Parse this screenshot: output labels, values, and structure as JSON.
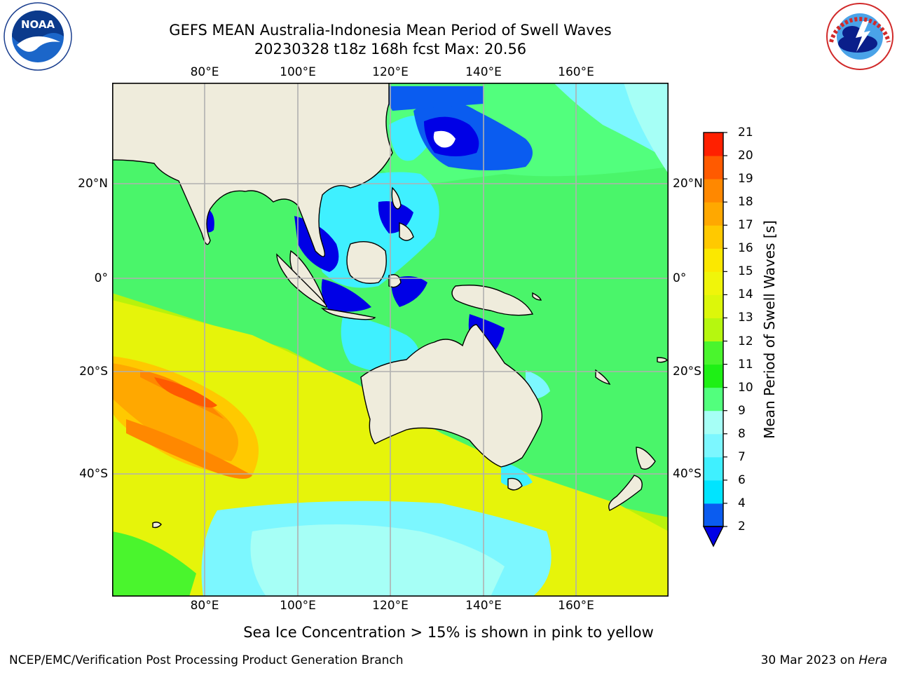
{
  "header": {
    "title_line1": "GEFS MEAN Australia-Indonesia Mean Period of Swell Waves",
    "title_line2": "20230328 t18z 168h fcst   Max: 20.56"
  },
  "logos": {
    "left": {
      "text": "NOAA",
      "ring_text": "NATIONAL OCEANIC AND ATMOSPHERIC ADMINISTRATION",
      "icon": "noaa-logo-icon"
    },
    "right": {
      "ring_text": "NATIONAL WEATHER SERVICE",
      "icon": "nws-logo-icon"
    }
  },
  "map": {
    "lon_ticks": [
      "80°E",
      "100°E",
      "120°E",
      "140°E",
      "160°E"
    ],
    "lat_ticks": [
      "20°N",
      "0°",
      "20°S",
      "40°S"
    ],
    "land_color": "#efecdc",
    "grid_color": "#b0b0b0"
  },
  "colorbar": {
    "title": "Mean Period of Swell Waves [s]",
    "labels": [
      "2",
      "4",
      "6",
      "7",
      "8",
      "9",
      "10",
      "11",
      "12",
      "13",
      "14",
      "15",
      "16",
      "17",
      "18",
      "19",
      "20",
      "21"
    ],
    "colors": [
      "#0a5cf0",
      "#00e4ff",
      "#3ff0ff",
      "#7cf7ff",
      "#a6fff6",
      "#52ff7d",
      "#1ef015",
      "#4af52d",
      "#b6f70f",
      "#dcf70a",
      "#f0f50a",
      "#fbe800",
      "#ffc900",
      "#ffa800",
      "#ff8800",
      "#ff5a00",
      "#ff2000"
    ],
    "under_color": "#0000e6"
  },
  "footer": {
    "note": "Sea Ice Concentration > 15% is shown in pink to yellow",
    "credit": "NCEP/EMC/Verification Post Processing Product Generation Branch",
    "date": "30 Mar 2023 on ",
    "host": "Hera"
  }
}
